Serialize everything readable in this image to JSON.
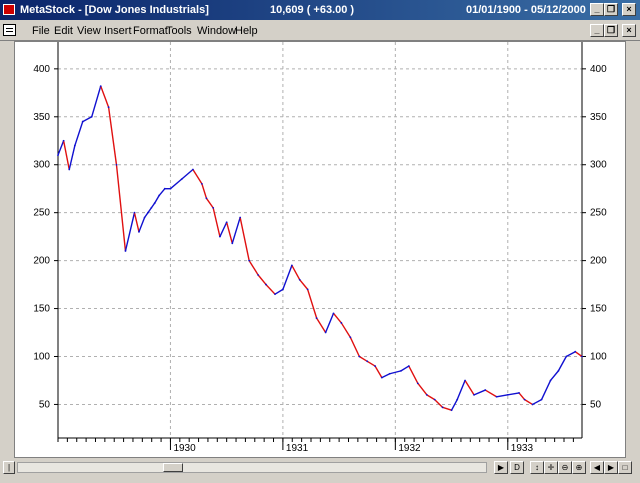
{
  "window": {
    "title": "MetaStock - [Dow Jones Industrials]",
    "last_value": "10,609 ( +63.00 )",
    "date_range": "01/01/1900 - 05/12/2000"
  },
  "menu": {
    "items": [
      "File",
      "Edit",
      "View",
      "Insert",
      "Format",
      "Tools",
      "Window",
      "Help"
    ]
  },
  "colors": {
    "series": "#1010d0",
    "down_overlay": "#e01010",
    "title_gradient_start": "#0a246a",
    "title_gradient_end": "#3a6ea5"
  },
  "chart_data": {
    "type": "line",
    "y_ticks": [
      50,
      100,
      150,
      200,
      250,
      300,
      350,
      400
    ],
    "ylim": [
      15,
      428
    ],
    "x_ticks": [
      "1930",
      "1931",
      "1932",
      "1933"
    ],
    "x_tick_positions": [
      1930.0,
      1931.0,
      1932.0,
      1933.0
    ],
    "xlim": [
      1929.0,
      1933.66
    ],
    "grid": true,
    "series": [
      {
        "x": [
          1929.0,
          1929.05,
          1929.1,
          1929.15,
          1929.22,
          1929.3,
          1929.38,
          1929.45,
          1929.52,
          1929.6,
          1929.68,
          1929.72,
          1929.77,
          1929.8,
          1929.83,
          1929.86,
          1929.9,
          1929.95,
          1930.0,
          1930.1,
          1930.2,
          1930.28,
          1930.32,
          1930.38,
          1930.44,
          1930.5,
          1930.55,
          1930.62,
          1930.7,
          1930.78,
          1930.85,
          1930.93,
          1931.0,
          1931.08,
          1931.15,
          1931.22,
          1931.3,
          1931.38,
          1931.45,
          1931.52,
          1931.6,
          1931.68,
          1931.75,
          1931.82,
          1931.88,
          1931.95,
          1932.05,
          1932.12,
          1932.2,
          1932.28,
          1932.35,
          1932.42,
          1932.5,
          1932.55,
          1932.62,
          1932.7,
          1932.8,
          1932.9,
          1933.0,
          1933.1,
          1933.15,
          1933.22,
          1933.3,
          1933.38,
          1933.45,
          1933.52,
          1933.6,
          1933.66
        ],
        "y": [
          310,
          325,
          295,
          320,
          345,
          350,
          382,
          360,
          300,
          210,
          250,
          230,
          245,
          250,
          255,
          260,
          268,
          275,
          275,
          285,
          295,
          280,
          265,
          255,
          225,
          240,
          218,
          245,
          200,
          185,
          175,
          165,
          170,
          195,
          180,
          170,
          140,
          125,
          145,
          135,
          120,
          100,
          95,
          90,
          78,
          82,
          85,
          90,
          72,
          60,
          55,
          47,
          44,
          55,
          75,
          60,
          65,
          58,
          60,
          62,
          55,
          50,
          55,
          75,
          85,
          100,
          105,
          100
        ]
      }
    ]
  }
}
